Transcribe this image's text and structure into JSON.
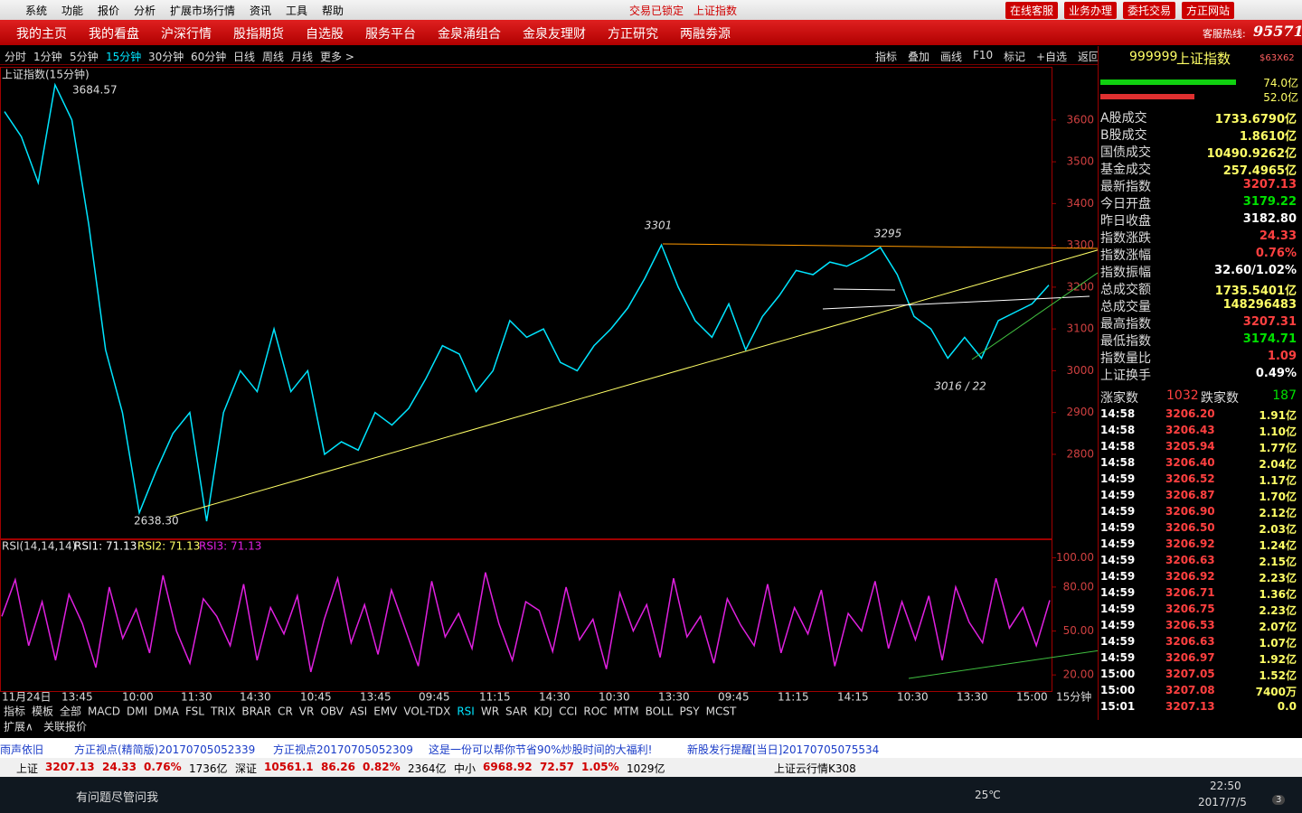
{
  "title_bar": {
    "menus": [
      "系统",
      "功能",
      "报价",
      "分析",
      "扩展市场行情",
      "资讯",
      "工具",
      "帮助"
    ],
    "status": [
      "交易已锁定",
      "上证指数"
    ],
    "buttons": [
      "在线客服",
      "业务办理",
      "委托交易",
      "方正网站"
    ]
  },
  "nav": {
    "items": [
      "我的主页",
      "我的看盘",
      "沪深行情",
      "股指期货",
      "自选股",
      "服务平台",
      "金泉涌组合",
      "金泉友理财",
      "方正研究",
      "两融劵源"
    ],
    "hotline_label": "客服热线:",
    "hotline": "95571"
  },
  "toolbar": {
    "periods": [
      "分时",
      "1分钟",
      "5分钟",
      "15分钟",
      "30分钟",
      "60分钟",
      "日线",
      "周线",
      "月线",
      "更多 >"
    ],
    "active": 3,
    "tools": [
      "指标",
      "叠加",
      "画线",
      "F10",
      "标记",
      "+自选",
      "返回"
    ]
  },
  "main_chart": {
    "title": "上证指数(15分钟)",
    "color": "#00e5ff",
    "ylim": [
      2601,
      3725
    ],
    "yticks": [
      {
        "value": 3600,
        "label": "3600"
      },
      {
        "value": 3500,
        "label": "3500"
      },
      {
        "value": 3400,
        "label": "3400"
      },
      {
        "value": 3300,
        "label": "3300"
      },
      {
        "value": 3200,
        "label": "3200"
      },
      {
        "value": 3100,
        "label": "3100"
      },
      {
        "value": 3000,
        "label": "3000"
      },
      {
        "value": 2900,
        "label": "2900"
      },
      {
        "value": 2800,
        "label": "2800"
      }
    ],
    "closes": [
      3620,
      3560,
      3450,
      3684,
      3600,
      3350,
      3050,
      2900,
      2660,
      2760,
      2850,
      2900,
      2640,
      2900,
      3000,
      2950,
      3100,
      2950,
      3000,
      2800,
      2830,
      2810,
      2900,
      2870,
      2910,
      2980,
      3060,
      3040,
      2950,
      3000,
      3120,
      3080,
      3100,
      3020,
      3000,
      3060,
      3100,
      3150,
      3220,
      3301,
      3200,
      3120,
      3080,
      3160,
      3050,
      3130,
      3180,
      3240,
      3230,
      3260,
      3250,
      3270,
      3295,
      3230,
      3130,
      3100,
      3030,
      3080,
      3030,
      3120,
      3140,
      3160,
      3205
    ],
    "annotations": [
      "3684.57",
      "2638.30",
      "3301",
      "3295",
      "3016 / 22"
    ]
  },
  "rsi": {
    "title": "RSI(14,14,14)",
    "lines": [
      "RSI1: 71.13",
      "RSI2: 71.13",
      "RSI3: 71.13"
    ],
    "color": "#e020e0",
    "ylim": [
      9,
      112
    ],
    "yticks": [
      {
        "value": 100,
        "label": "100.00"
      },
      {
        "value": 80,
        "label": "80.00"
      },
      {
        "value": 50,
        "label": "50.00"
      },
      {
        "value": 20,
        "label": "20.00"
      }
    ],
    "values": [
      60,
      85,
      40,
      70,
      30,
      75,
      55,
      25,
      80,
      45,
      65,
      35,
      88,
      50,
      28,
      72,
      60,
      40,
      82,
      30,
      66,
      48,
      74,
      22,
      58,
      86,
      42,
      68,
      34,
      78,
      52,
      26,
      84,
      46,
      62,
      38,
      90,
      55,
      30,
      70,
      64,
      36,
      80,
      44,
      58,
      24,
      76,
      50,
      68,
      32,
      86,
      46,
      60,
      28,
      72,
      54,
      40,
      82,
      35,
      66,
      48,
      78,
      26,
      62,
      50,
      84,
      38,
      70,
      44,
      74,
      30,
      80,
      56,
      42,
      86,
      52,
      66,
      40,
      71
    ]
  },
  "time_axis": [
    "11月24日",
    "13:45",
    "10:00",
    "11:30",
    "14:30",
    "10:45",
    "13:45",
    "09:45",
    "11:15",
    "14:30",
    "10:30",
    "13:30",
    "09:45",
    "11:15",
    "14:15",
    "10:30",
    "13:30",
    "15:00",
    "15分钟"
  ],
  "indicator_tabs": [
    "指标",
    "模板",
    "全部",
    "MACD",
    "DMI",
    "DMA",
    "FSL",
    "TRIX",
    "BRAR",
    "CR",
    "VR",
    "OBV",
    "ASI",
    "EMV",
    "VOL-TDX",
    "RSI",
    "WR",
    "SAR",
    "KDJ",
    "CCI",
    "ROC",
    "MTM",
    "BOLL",
    "PSY",
    "MCST"
  ],
  "sub_tabs": [
    "扩展∧",
    "关联报价"
  ],
  "ticker": [
    "雨声依旧",
    "方正视点(精简版)20170705052339",
    "方正视点20170705052309",
    "这是一份可以帮你节省90%炒股时间的大福利!",
    "新股发行提醒[当日]20170705075534"
  ],
  "status_bar": [
    "上证",
    "3207.13",
    "24.33",
    "0.76%",
    "1736亿",
    "深证",
    "10561.1",
    "86.26",
    "0.82%",
    "2364亿",
    "中小",
    "6968.92",
    "72.57",
    "1.05%",
    "1029亿",
    "上证云行情K308"
  ],
  "panel": {
    "code": "999999",
    "name": "上证指数",
    "tag": "$63X62",
    "bars": [
      "74.0亿",
      "52.0亿"
    ],
    "rows": [
      {
        "label": "A股成交",
        "value": "1733.6790亿",
        "color": "#ffff66"
      },
      {
        "label": "B股成交",
        "value": "1.8610亿",
        "color": "#ffff66"
      },
      {
        "label": "国债成交",
        "value": "10490.9262亿",
        "color": "#ffff66"
      },
      {
        "label": "基金成交",
        "value": "257.4965亿",
        "color": "#ffff66"
      },
      {
        "label": "最新指数",
        "value": "3207.13",
        "color": "#ff4040"
      },
      {
        "label": "今日开盘",
        "value": "3179.22",
        "color": "#00e000"
      },
      {
        "label": "昨日收盘",
        "value": "3182.80",
        "color": "#ffffff"
      },
      {
        "label": "指数涨跌",
        "value": "24.33",
        "color": "#ff4040"
      },
      {
        "label": "指数涨幅",
        "value": "0.76%",
        "color": "#ff4040"
      },
      {
        "label": "指数振幅",
        "value": "32.60/1.02%",
        "color": "#ffffff"
      },
      {
        "label": "总成交额",
        "value": "1735.5401亿",
        "color": "#ffff66"
      },
      {
        "label": "总成交量",
        "value": "148296483",
        "color": "#ffff66"
      },
      {
        "label": "最高指数",
        "value": "3207.31",
        "color": "#ff4040"
      },
      {
        "label": "最低指数",
        "value": "3174.71",
        "color": "#00e000"
      },
      {
        "label": "指数量比",
        "value": "1.09",
        "color": "#ff4040"
      },
      {
        "label": "上证换手",
        "value": "0.49%",
        "color": "#ffffff"
      }
    ],
    "breadth": [
      "涨家数",
      "1032",
      "跌家数",
      "187"
    ],
    "ticks": [
      [
        "14:58",
        "3206.20",
        "1.91亿"
      ],
      [
        "14:58",
        "3206.43",
        "1.10亿"
      ],
      [
        "14:58",
        "3205.94",
        "1.77亿"
      ],
      [
        "14:58",
        "3206.40",
        "2.04亿"
      ],
      [
        "14:59",
        "3206.52",
        "1.17亿"
      ],
      [
        "14:59",
        "3206.87",
        "1.70亿"
      ],
      [
        "14:59",
        "3206.90",
        "2.12亿"
      ],
      [
        "14:59",
        "3206.50",
        "2.03亿"
      ],
      [
        "14:59",
        "3206.92",
        "1.24亿"
      ],
      [
        "14:59",
        "3206.63",
        "2.15亿"
      ],
      [
        "14:59",
        "3206.92",
        "2.23亿"
      ],
      [
        "14:59",
        "3206.71",
        "1.36亿"
      ],
      [
        "14:59",
        "3206.75",
        "2.23亿"
      ],
      [
        "14:59",
        "3206.53",
        "2.07亿"
      ],
      [
        "14:59",
        "3206.63",
        "1.07亿"
      ],
      [
        "14:59",
        "3206.97",
        "1.92亿"
      ],
      [
        "15:00",
        "3207.05",
        "1.52亿"
      ],
      [
        "15:00",
        "3207.08",
        "7400万"
      ],
      [
        "15:01",
        "3207.13",
        "0.0"
      ]
    ]
  },
  "taskbar": {
    "search": "有问题尽管问我",
    "weather": "25℃",
    "time": "22:50",
    "date": "2017/7/5",
    "badge": "3"
  }
}
